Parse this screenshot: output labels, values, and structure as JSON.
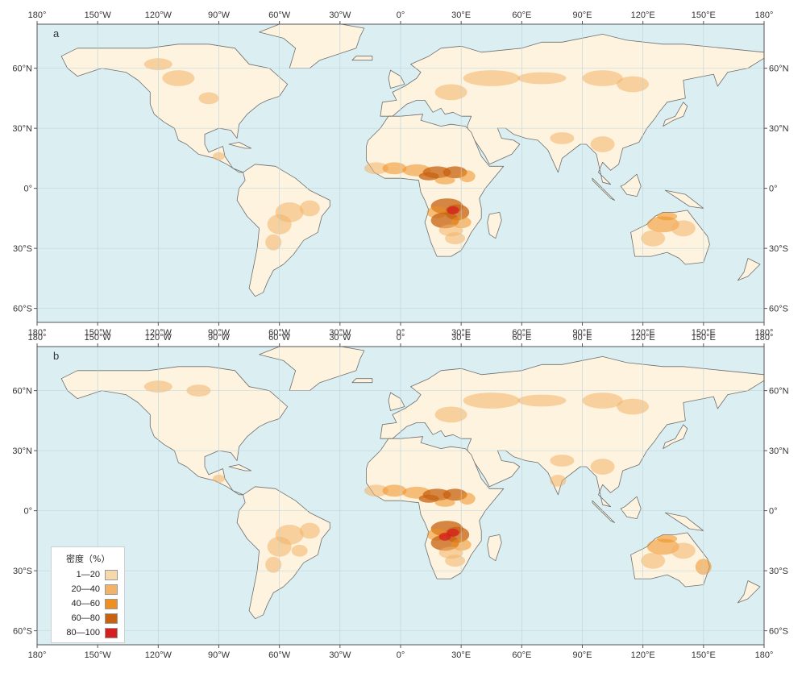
{
  "panels": [
    {
      "letter": "a"
    },
    {
      "letter": "b"
    }
  ],
  "axes": {
    "lon_labels": [
      "180°",
      "150°W",
      "120°W",
      "90°W",
      "60°W",
      "30°W",
      "0°",
      "30°E",
      "60°E",
      "90°E",
      "120°E",
      "150°E",
      "180°"
    ],
    "lat_labels_left": [
      "60°N",
      "30°N",
      "0°",
      "30°S",
      "60°S"
    ],
    "lat_labels_right": [
      "60°N",
      "30°N",
      "0°",
      "30°S",
      "60°S"
    ]
  },
  "legend": {
    "title": "密度（%）",
    "items": [
      {
        "label": "1—20",
        "color": "#f6d8aa"
      },
      {
        "label": "20—40",
        "color": "#f3b267"
      },
      {
        "label": "40—60",
        "color": "#ee8f22"
      },
      {
        "label": "60—80",
        "color": "#c8620f"
      },
      {
        "label": "80—100",
        "color": "#d61e1e"
      }
    ]
  },
  "colors": {
    "ocean": "#dbeef2",
    "land": "#fdf3df",
    "coast": "#6e6e6e",
    "grid": "#b9d3dc"
  }
}
